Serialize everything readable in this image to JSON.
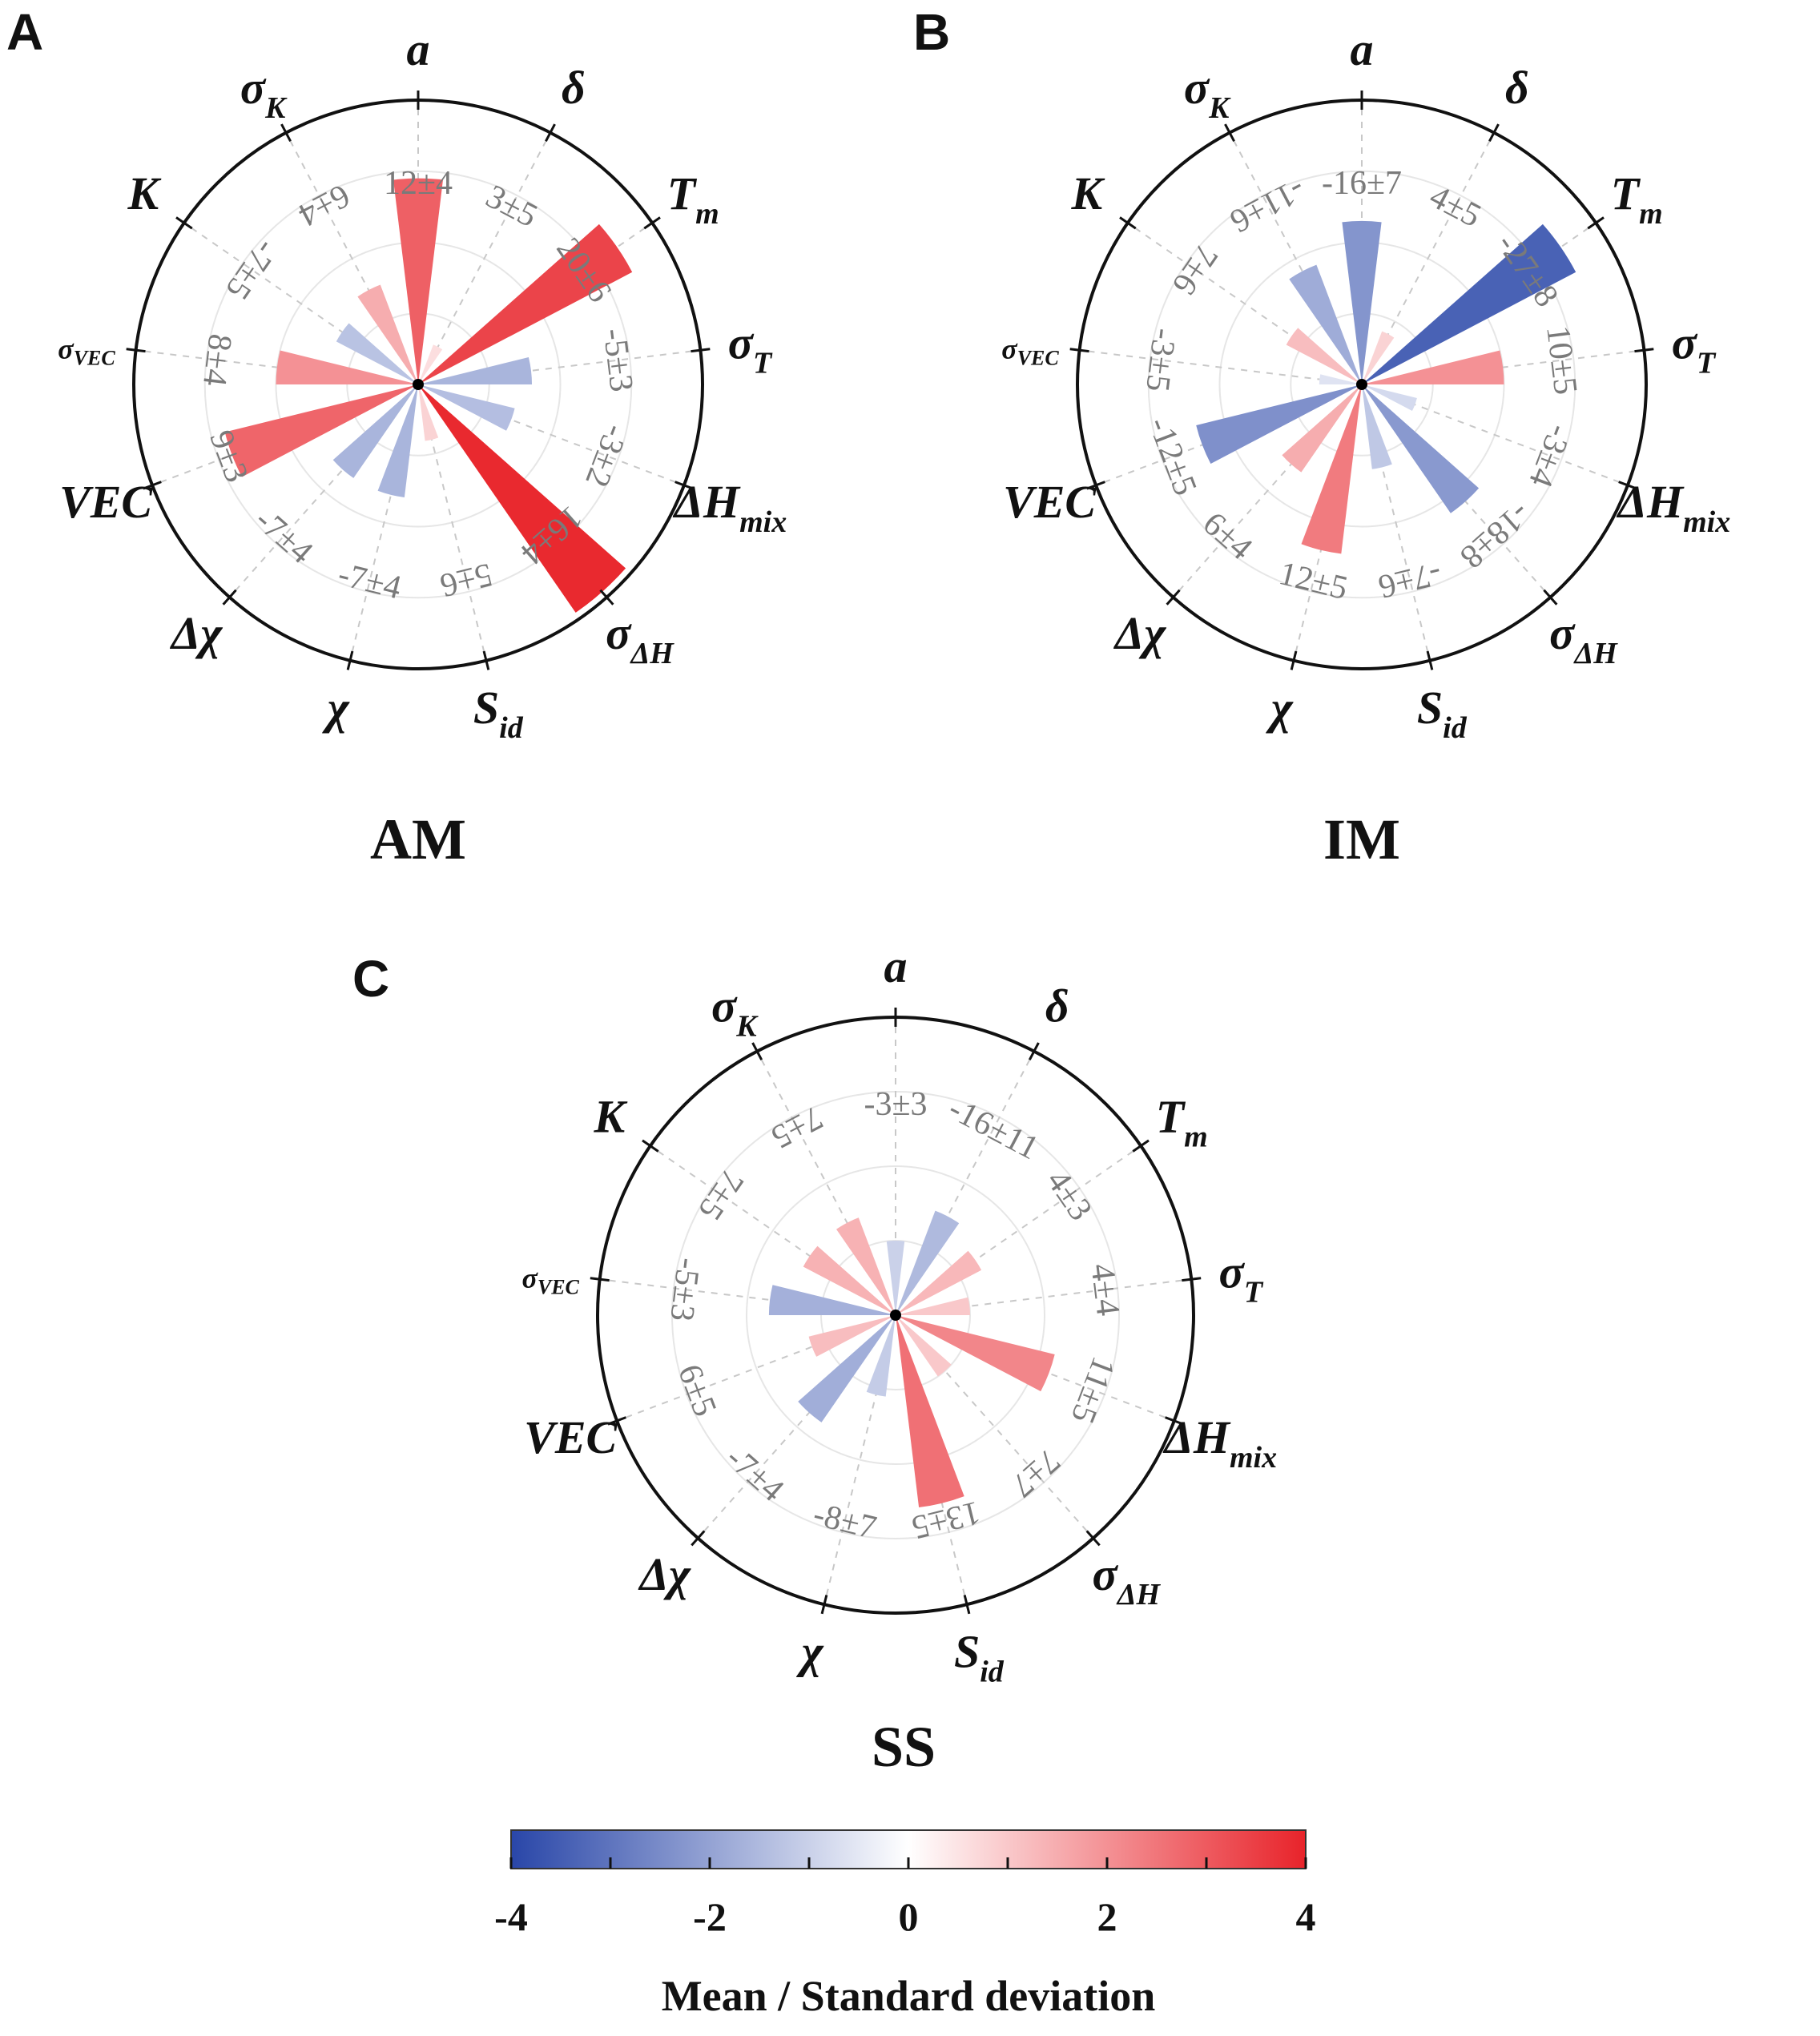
{
  "chart_data": [
    {
      "type": "radial-bar",
      "panel": "A",
      "title": "AM",
      "categories": [
        "a",
        "δ",
        "T_m",
        "σ_T",
        "ΔH_mix",
        "σ_ΔH",
        "S_id",
        "χ",
        "Δχ",
        "VEC",
        "σ_VEC",
        "K",
        "σ_K"
      ],
      "value_labels": [
        "12±4",
        "3±5",
        "20±6",
        "-5±3",
        "-3±2",
        "16±4",
        "5±6",
        "-7±4",
        "-7±4",
        "9±3",
        "8±4",
        "-7±5",
        "6±4"
      ],
      "values": [
        2.9,
        0.6,
        3.4,
        -1.6,
        -1.4,
        3.9,
        0.8,
        -1.6,
        -1.6,
        2.8,
        2.0,
        -1.3,
        1.5
      ]
    },
    {
      "type": "radial-bar",
      "panel": "B",
      "title": "IM",
      "categories": [
        "a",
        "δ",
        "T_m",
        "σ_T",
        "ΔH_mix",
        "σ_ΔH",
        "S_id",
        "χ",
        "Δχ",
        "VEC",
        "σ_VEC",
        "K",
        "σ_K"
      ],
      "value_labels": [
        "-16±7",
        "4±5",
        "-27±8",
        "10±5",
        "-3±4",
        "-18±8",
        "-7±6",
        "12±5",
        "6±4",
        "-12±5",
        "-3±5",
        "7±6",
        "-11±6"
      ],
      "values": [
        -2.3,
        0.8,
        -3.4,
        2.0,
        -0.8,
        -2.2,
        -1.2,
        2.4,
        1.5,
        -2.4,
        -0.6,
        1.2,
        -1.8
      ]
    },
    {
      "type": "radial-bar",
      "panel": "C",
      "title": "SS",
      "categories": [
        "a",
        "δ",
        "T_m",
        "σ_T",
        "ΔH_mix",
        "σ_ΔH",
        "S_id",
        "χ",
        "Δχ",
        "VEC",
        "σ_VEC",
        "K",
        "σ_K"
      ],
      "value_labels": [
        "-3±3",
        "-16±11",
        "4±3",
        "4±4",
        "11±5",
        "7±7",
        "13±5",
        "-8±7",
        "-7±4",
        "6±5",
        "-5±3",
        "7±5",
        "7±5"
      ],
      "values": [
        -1.0,
        -1.5,
        1.3,
        1.0,
        2.2,
        1.0,
        2.6,
        -1.1,
        -1.75,
        1.2,
        -1.7,
        1.4,
        1.4
      ]
    }
  ],
  "colorbar": {
    "title": "Mean / Standard deviation",
    "ticks": [
      "-4",
      "-2",
      "0",
      "2",
      "4"
    ],
    "min": -4,
    "max": 4,
    "colors": {
      "negative": "#2946a8",
      "zero": "#ffffff",
      "positive": "#e8232a"
    }
  }
}
